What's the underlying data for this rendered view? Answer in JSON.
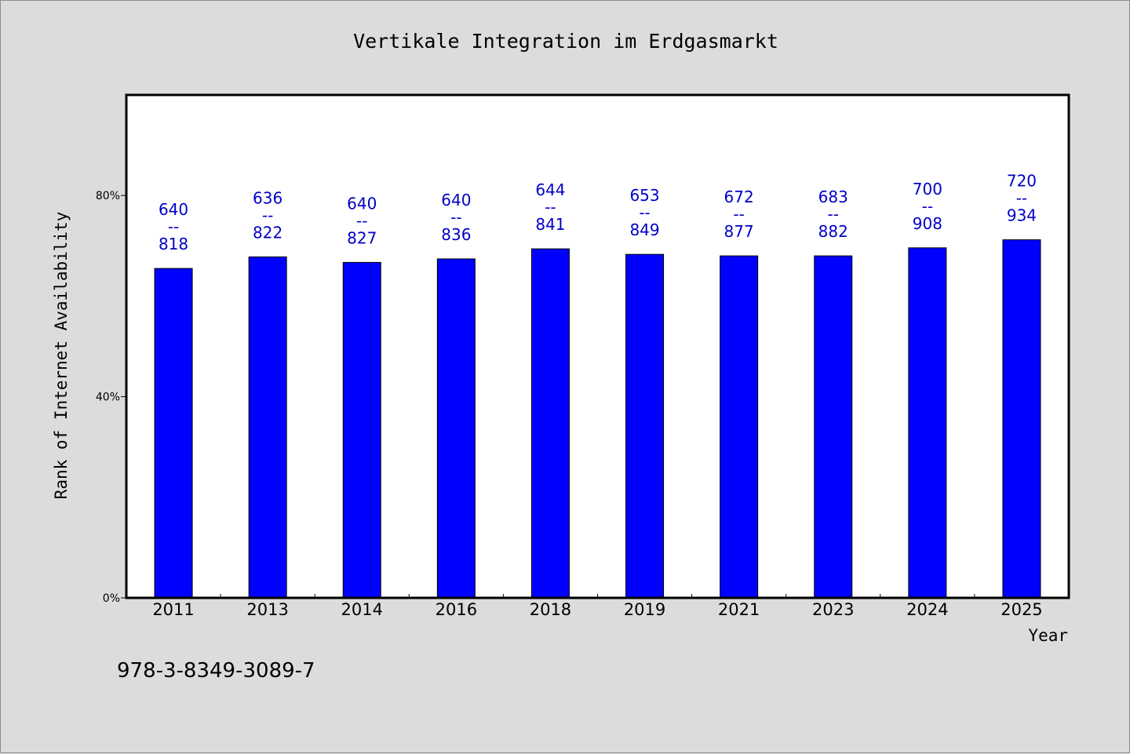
{
  "colors": {
    "background": "#dcdcdc",
    "plot_background": "#ffffff",
    "bar_fill": "#0000ff",
    "bar_stroke": "#000000",
    "data_label": "#0000c8",
    "axis": "#000000"
  },
  "footer": {
    "code": "978-3-8349-3089-7"
  },
  "chart_data": {
    "type": "bar",
    "title": "Vertikale Integration im Erdgasmarkt",
    "xlabel": "Year",
    "ylabel": "Rank of Internet Availability",
    "ylim": [
      0,
      100
    ],
    "yticks": [
      0,
      40,
      80
    ],
    "ytick_labels": [
      "0%",
      "40%",
      "80%"
    ],
    "grid": false,
    "legend": "none",
    "categories": [
      "2011",
      "2013",
      "2014",
      "2016",
      "2018",
      "2019",
      "2021",
      "2023",
      "2024",
      "2025"
    ],
    "values": [
      65.5,
      67.8,
      66.7,
      67.4,
      69.4,
      68.3,
      68.0,
      68.0,
      69.6,
      71.2
    ],
    "labels_top": [
      "640",
      "636",
      "640",
      "640",
      "644",
      "653",
      "672",
      "683",
      "700",
      "720"
    ],
    "labels_sep": [
      "--",
      "--",
      "--",
      "--",
      "--",
      "--",
      "--",
      "--",
      "--",
      "--"
    ],
    "labels_bottom": [
      "818",
      "822",
      "827",
      "836",
      "841",
      "849",
      "877",
      "882",
      "908",
      "934"
    ]
  }
}
